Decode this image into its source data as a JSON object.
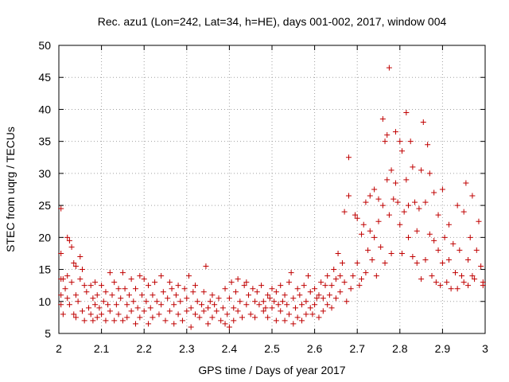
{
  "chart_data": {
    "type": "scatter",
    "title": "Rec. azu1 (Lon=242, Lat=34, h=HE), days 001-002, 2017, window 004",
    "xlabel": "GPS time / Days of year 2017",
    "ylabel": "STEC from uqrg / TECUs",
    "xlim": [
      2,
      3
    ],
    "ylim": [
      5,
      50
    ],
    "xticks": [
      "2",
      "2.1",
      "2.2",
      "2.3",
      "2.4",
      "2.5",
      "2.6",
      "2.7",
      "2.8",
      "2.9",
      "3"
    ],
    "yticks": [
      "5",
      "10",
      "15",
      "20",
      "25",
      "30",
      "35",
      "40",
      "45",
      "50"
    ],
    "grid": true,
    "marker": "plus",
    "color": "#c00000",
    "series": [
      {
        "points": [
          [
            2.005,
            24.5
          ],
          [
            2.005,
            17.5
          ],
          [
            2.005,
            13.5
          ],
          [
            2.005,
            11.0
          ],
          [
            2.005,
            9.5
          ],
          [
            2.01,
            13.5
          ],
          [
            2.01,
            8.0
          ],
          [
            2.015,
            12.0
          ],
          [
            2.02,
            20.0
          ],
          [
            2.02,
            14.0
          ],
          [
            2.02,
            10.5
          ],
          [
            2.025,
            19.5
          ],
          [
            2.025,
            9.5
          ],
          [
            2.03,
            18.5
          ],
          [
            2.03,
            13.0
          ],
          [
            2.035,
            16.0
          ],
          [
            2.035,
            8.0
          ],
          [
            2.04,
            15.5
          ],
          [
            2.04,
            11.0
          ],
          [
            2.04,
            7.5
          ],
          [
            2.045,
            10.0
          ],
          [
            2.05,
            17.0
          ],
          [
            2.05,
            13.5
          ],
          [
            2.055,
            15.0
          ],
          [
            2.055,
            8.5
          ],
          [
            2.06,
            12.5
          ],
          [
            2.06,
            7.0
          ],
          [
            2.065,
            11.5
          ],
          [
            2.07,
            9.0
          ],
          [
            2.075,
            12.5
          ],
          [
            2.075,
            8.0
          ],
          [
            2.08,
            10.5
          ],
          [
            2.08,
            7.0
          ],
          [
            2.085,
            13.0
          ],
          [
            2.085,
            9.5
          ],
          [
            2.09,
            11.0
          ],
          [
            2.09,
            7.5
          ],
          [
            2.095,
            9.0
          ],
          [
            2.1,
            12.5
          ],
          [
            2.1,
            8.0
          ],
          [
            2.105,
            10.0
          ],
          [
            2.11,
            11.5
          ],
          [
            2.11,
            7.0
          ],
          [
            2.115,
            9.5
          ],
          [
            2.12,
            14.5
          ],
          [
            2.12,
            8.5
          ],
          [
            2.125,
            11.0
          ],
          [
            2.13,
            13.0
          ],
          [
            2.13,
            7.0
          ],
          [
            2.135,
            9.5
          ],
          [
            2.14,
            12.0
          ],
          [
            2.14,
            8.0
          ],
          [
            2.145,
            10.5
          ],
          [
            2.15,
            14.5
          ],
          [
            2.15,
            7.0
          ],
          [
            2.155,
            12.0
          ],
          [
            2.16,
            9.5
          ],
          [
            2.16,
            7.5
          ],
          [
            2.165,
            11.0
          ],
          [
            2.17,
            13.5
          ],
          [
            2.17,
            8.5
          ],
          [
            2.175,
            10.0
          ],
          [
            2.18,
            12.0
          ],
          [
            2.18,
            6.5
          ],
          [
            2.185,
            9.0
          ],
          [
            2.19,
            14.0
          ],
          [
            2.19,
            7.5
          ],
          [
            2.195,
            11.0
          ],
          [
            2.2,
            13.5
          ],
          [
            2.2,
            8.5
          ],
          [
            2.205,
            10.0
          ],
          [
            2.21,
            12.5
          ],
          [
            2.21,
            6.5
          ],
          [
            2.215,
            9.0
          ],
          [
            2.22,
            11.0
          ],
          [
            2.22,
            7.5
          ],
          [
            2.225,
            13.0
          ],
          [
            2.23,
            10.0
          ],
          [
            2.235,
            8.0
          ],
          [
            2.24,
            14.0
          ],
          [
            2.24,
            9.5
          ],
          [
            2.245,
            11.5
          ],
          [
            2.25,
            7.0
          ],
          [
            2.255,
            10.5
          ],
          [
            2.26,
            13.0
          ],
          [
            2.26,
            8.5
          ],
          [
            2.265,
            12.0
          ],
          [
            2.27,
            9.5
          ],
          [
            2.27,
            6.5
          ],
          [
            2.275,
            11.0
          ],
          [
            2.28,
            12.5
          ],
          [
            2.28,
            8.0
          ],
          [
            2.285,
            10.0
          ],
          [
            2.29,
            7.0
          ],
          [
            2.295,
            12.0
          ],
          [
            2.3,
            10.5
          ],
          [
            2.3,
            8.5
          ],
          [
            2.305,
            14.0
          ],
          [
            2.31,
            9.0
          ],
          [
            2.31,
            6.0
          ],
          [
            2.315,
            11.5
          ],
          [
            2.32,
            12.5
          ],
          [
            2.32,
            8.0
          ],
          [
            2.325,
            10.0
          ],
          [
            2.33,
            7.5
          ],
          [
            2.335,
            9.5
          ],
          [
            2.34,
            11.5
          ],
          [
            2.34,
            8.5
          ],
          [
            2.345,
            15.5
          ],
          [
            2.35,
            9.0
          ],
          [
            2.35,
            6.5
          ],
          [
            2.355,
            10.0
          ],
          [
            2.36,
            11.0
          ],
          [
            2.36,
            7.5
          ],
          [
            2.365,
            9.5
          ],
          [
            2.37,
            8.5
          ],
          [
            2.375,
            10.5
          ],
          [
            2.38,
            7.0
          ],
          [
            2.385,
            9.0
          ],
          [
            2.39,
            12.0
          ],
          [
            2.39,
            6.5
          ],
          [
            2.395,
            8.0
          ],
          [
            2.4,
            10.5
          ],
          [
            2.4,
            6.0
          ],
          [
            2.405,
            13.0
          ],
          [
            2.41,
            9.0
          ],
          [
            2.41,
            7.0
          ],
          [
            2.415,
            11.5
          ],
          [
            2.42,
            13.5
          ],
          [
            2.42,
            8.5
          ],
          [
            2.425,
            10.0
          ],
          [
            2.43,
            7.5
          ],
          [
            2.435,
            12.5
          ],
          [
            2.44,
            9.5
          ],
          [
            2.44,
            13.0
          ],
          [
            2.445,
            11.0
          ],
          [
            2.45,
            8.0
          ],
          [
            2.455,
            12.0
          ],
          [
            2.46,
            10.0
          ],
          [
            2.46,
            7.5
          ],
          [
            2.465,
            11.5
          ],
          [
            2.47,
            9.5
          ],
          [
            2.475,
            12.5
          ],
          [
            2.48,
            10.0
          ],
          [
            2.48,
            8.5
          ],
          [
            2.485,
            9.0
          ],
          [
            2.49,
            11.0
          ],
          [
            2.49,
            7.5
          ],
          [
            2.495,
            10.5
          ],
          [
            2.5,
            12.0
          ],
          [
            2.5,
            9.0
          ],
          [
            2.505,
            10.0
          ],
          [
            2.51,
            11.5
          ],
          [
            2.51,
            7.0
          ],
          [
            2.515,
            9.5
          ],
          [
            2.52,
            12.5
          ],
          [
            2.52,
            8.5
          ],
          [
            2.525,
            10.0
          ],
          [
            2.53,
            11.0
          ],
          [
            2.53,
            7.0
          ],
          [
            2.535,
            9.5
          ],
          [
            2.54,
            13.0
          ],
          [
            2.54,
            8.0
          ],
          [
            2.545,
            14.5
          ],
          [
            2.55,
            10.5
          ],
          [
            2.55,
            6.5
          ],
          [
            2.555,
            9.0
          ],
          [
            2.56,
            12.0
          ],
          [
            2.56,
            7.5
          ],
          [
            2.565,
            11.0
          ],
          [
            2.57,
            9.5
          ],
          [
            2.57,
            7.0
          ],
          [
            2.575,
            12.5
          ],
          [
            2.58,
            10.0
          ],
          [
            2.58,
            8.0
          ],
          [
            2.585,
            14.0
          ],
          [
            2.59,
            11.5
          ],
          [
            2.59,
            9.0
          ],
          [
            2.595,
            8.0
          ],
          [
            2.6,
            12.0
          ],
          [
            2.6,
            9.5
          ],
          [
            2.605,
            10.5
          ],
          [
            2.61,
            11.0
          ],
          [
            2.61,
            7.5
          ],
          [
            2.615,
            13.0
          ],
          [
            2.62,
            10.5
          ],
          [
            2.62,
            8.5
          ],
          [
            2.625,
            12.5
          ],
          [
            2.63,
            9.5
          ],
          [
            2.63,
            14.0
          ],
          [
            2.635,
            11.0
          ],
          [
            2.64,
            12.5
          ],
          [
            2.64,
            9.0
          ],
          [
            2.645,
            15.0
          ],
          [
            2.65,
            13.5
          ],
          [
            2.65,
            10.5
          ],
          [
            2.655,
            17.5
          ],
          [
            2.66,
            14.0
          ],
          [
            2.66,
            11.5
          ],
          [
            2.665,
            16.0
          ],
          [
            2.67,
            24.0
          ],
          [
            2.67,
            13.0
          ],
          [
            2.675,
            10.0
          ],
          [
            2.68,
            32.5
          ],
          [
            2.68,
            26.5
          ],
          [
            2.685,
            12.0
          ],
          [
            2.69,
            14.0
          ],
          [
            2.695,
            23.5
          ],
          [
            2.7,
            23.0
          ],
          [
            2.7,
            16.0
          ],
          [
            2.705,
            12.5
          ],
          [
            2.71,
            20.5
          ],
          [
            2.71,
            13.5
          ],
          [
            2.715,
            22.0
          ],
          [
            2.72,
            25.5
          ],
          [
            2.72,
            14.5
          ],
          [
            2.725,
            18.0
          ],
          [
            2.73,
            26.5
          ],
          [
            2.73,
            21.0
          ],
          [
            2.735,
            16.5
          ],
          [
            2.74,
            27.5
          ],
          [
            2.74,
            20.0
          ],
          [
            2.745,
            14.0
          ],
          [
            2.75,
            26.0
          ],
          [
            2.75,
            22.5
          ],
          [
            2.755,
            18.5
          ],
          [
            2.76,
            38.5
          ],
          [
            2.76,
            25.0
          ],
          [
            2.765,
            35.0
          ],
          [
            2.765,
            16.0
          ],
          [
            2.77,
            36.0
          ],
          [
            2.77,
            29.0
          ],
          [
            2.775,
            46.5
          ],
          [
            2.775,
            23.5
          ],
          [
            2.78,
            30.5
          ],
          [
            2.78,
            17.5
          ],
          [
            2.785,
            26.0
          ],
          [
            2.79,
            36.5
          ],
          [
            2.79,
            28.5
          ],
          [
            2.795,
            25.5
          ],
          [
            2.8,
            35.0
          ],
          [
            2.8,
            22.0
          ],
          [
            2.805,
            33.5
          ],
          [
            2.805,
            17.5
          ],
          [
            2.81,
            24.0
          ],
          [
            2.815,
            39.5
          ],
          [
            2.815,
            29.0
          ],
          [
            2.82,
            25.0
          ],
          [
            2.82,
            20.0
          ],
          [
            2.825,
            35.0
          ],
          [
            2.83,
            31.0
          ],
          [
            2.83,
            17.0
          ],
          [
            2.835,
            25.5
          ],
          [
            2.84,
            21.0
          ],
          [
            2.84,
            16.0
          ],
          [
            2.845,
            24.5
          ],
          [
            2.85,
            30.5
          ],
          [
            2.85,
            13.5
          ],
          [
            2.855,
            38.0
          ],
          [
            2.86,
            25.5
          ],
          [
            2.86,
            16.5
          ],
          [
            2.865,
            34.5
          ],
          [
            2.87,
            30.0
          ],
          [
            2.87,
            20.5
          ],
          [
            2.875,
            14.0
          ],
          [
            2.88,
            27.0
          ],
          [
            2.88,
            19.5
          ],
          [
            2.885,
            13.0
          ],
          [
            2.89,
            23.5
          ],
          [
            2.89,
            18.0
          ],
          [
            2.895,
            12.5
          ],
          [
            2.9,
            27.5
          ],
          [
            2.9,
            16.0
          ],
          [
            2.905,
            20.0
          ],
          [
            2.91,
            13.0
          ],
          [
            2.915,
            22.0
          ],
          [
            2.915,
            16.5
          ],
          [
            2.92,
            12.0
          ],
          [
            2.925,
            19.0
          ],
          [
            2.93,
            14.5
          ],
          [
            2.935,
            25.0
          ],
          [
            2.935,
            12.0
          ],
          [
            2.94,
            18.0
          ],
          [
            2.945,
            14.0
          ],
          [
            2.95,
            24.0
          ],
          [
            2.95,
            13.0
          ],
          [
            2.955,
            28.5
          ],
          [
            2.96,
            16.5
          ],
          [
            2.96,
            12.5
          ],
          [
            2.965,
            20.0
          ],
          [
            2.97,
            26.5
          ],
          [
            2.97,
            14.0
          ],
          [
            2.975,
            13.5
          ],
          [
            2.98,
            18.0
          ],
          [
            2.985,
            22.5
          ],
          [
            2.99,
            15.5
          ],
          [
            2.995,
            13.0
          ],
          [
            2.995,
            12.5
          ]
        ]
      }
    ]
  }
}
